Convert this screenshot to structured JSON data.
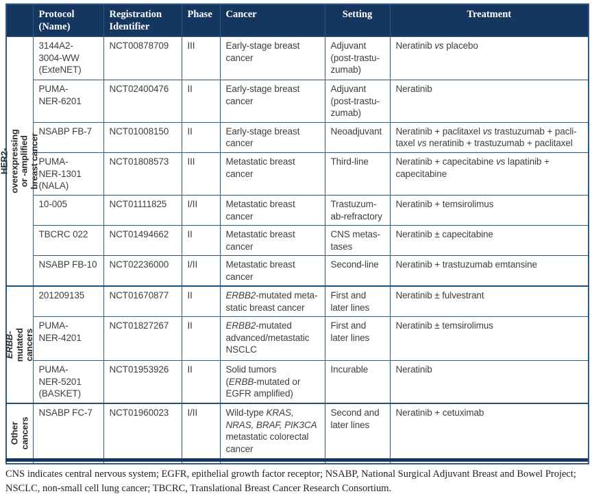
{
  "colors": {
    "header_bg": "#14365f",
    "grid_border": "#2d5a87",
    "group_divider": "#1f4e79",
    "body_text": "#3e3e3e",
    "footer_bar": "#14365f"
  },
  "header": {
    "columns": [
      "Protocol (Name)",
      "Registration Identifier",
      "Phase",
      "Cancer",
      "Setting",
      "Treatment"
    ]
  },
  "groups": [
    {
      "label": [
        {
          "t": "HER2-overexpressing or -amplified breast cancer"
        }
      ]
    },
    {
      "label": [
        {
          "t": "ERBB",
          "i": true
        },
        {
          "t": "-mutated"
        },
        {
          "br": true
        },
        {
          "t": "cancers"
        }
      ]
    },
    {
      "label": [
        {
          "t": "Other"
        },
        {
          "br": true
        },
        {
          "t": "cancers"
        }
      ]
    }
  ],
  "rows": [
    {
      "protocol": [
        {
          "t": "3144A2-"
        },
        {
          "br": true
        },
        {
          "t": "3004-WW"
        },
        {
          "br": true
        },
        {
          "t": "(ExteNET)"
        }
      ],
      "nct": "NCT00878709",
      "phase": "III",
      "cancer": [
        {
          "t": "Early-stage breast"
        },
        {
          "br": true
        },
        {
          "t": "cancer"
        }
      ],
      "setting": [
        {
          "t": "Adjuvant"
        },
        {
          "br": true
        },
        {
          "t": "(post-trastu-"
        },
        {
          "br": true
        },
        {
          "t": "zumab)"
        }
      ],
      "treatment": [
        {
          "t": "Neratinib "
        },
        {
          "t": "vs",
          "i": true
        },
        {
          "t": " placebo"
        }
      ]
    },
    {
      "protocol": [
        {
          "t": "PUMA-"
        },
        {
          "br": true
        },
        {
          "t": "NER-6201"
        }
      ],
      "nct": "NCT02400476",
      "phase": "II",
      "cancer": [
        {
          "t": "Early-stage breast"
        },
        {
          "br": true
        },
        {
          "t": "cancer"
        }
      ],
      "setting": [
        {
          "t": "Adjuvant"
        },
        {
          "br": true
        },
        {
          "t": "(post-trastu-"
        },
        {
          "br": true
        },
        {
          "t": "zumab)"
        }
      ],
      "treatment": [
        {
          "t": "Neratinib"
        }
      ]
    },
    {
      "protocol": [
        {
          "t": "NSABP FB-7"
        }
      ],
      "nct": "NCT01008150",
      "phase": "II",
      "cancer": [
        {
          "t": "Early-stage breast"
        },
        {
          "br": true
        },
        {
          "t": "cancer"
        }
      ],
      "setting": [
        {
          "t": "Neoadjuvant"
        }
      ],
      "treatment": [
        {
          "t": "Neratinib + paclitaxel "
        },
        {
          "t": "vs",
          "i": true
        },
        {
          "t": " trastuzumab + pacli-"
        },
        {
          "br": true
        },
        {
          "t": "taxel "
        },
        {
          "t": "vs",
          "i": true
        },
        {
          "t": " neratinib + trastuzumab + paclitaxel"
        }
      ]
    },
    {
      "protocol": [
        {
          "t": "PUMA-"
        },
        {
          "br": true
        },
        {
          "t": "NER-1301"
        },
        {
          "br": true
        },
        {
          "t": "(NALA)"
        }
      ],
      "nct": "NCT01808573",
      "phase": "III",
      "cancer": [
        {
          "t": "Metastatic breast"
        },
        {
          "br": true
        },
        {
          "t": "cancer"
        }
      ],
      "setting": [
        {
          "t": "Third-line"
        }
      ],
      "treatment": [
        {
          "t": "Neratinib + capecitabine "
        },
        {
          "t": "vs",
          "i": true
        },
        {
          "t": " lapatinib +"
        },
        {
          "br": true
        },
        {
          "t": "capecitabine"
        }
      ]
    },
    {
      "protocol": [
        {
          "t": "10-005"
        }
      ],
      "nct": "NCT01111825",
      "phase": "I/II",
      "cancer": [
        {
          "t": "Metastatic breast"
        },
        {
          "br": true
        },
        {
          "t": "cancer"
        }
      ],
      "setting": [
        {
          "t": "Trastuzum-"
        },
        {
          "br": true
        },
        {
          "t": "ab-refractory"
        }
      ],
      "treatment": [
        {
          "t": "Neratinib + temsirolimus"
        }
      ]
    },
    {
      "protocol": [
        {
          "t": "TBCRC 022"
        }
      ],
      "nct": "NCT01494662",
      "phase": "II",
      "cancer": [
        {
          "t": "Metastatic breast"
        },
        {
          "br": true
        },
        {
          "t": "cancer"
        }
      ],
      "setting": [
        {
          "t": "CNS metas-"
        },
        {
          "br": true
        },
        {
          "t": "tases"
        }
      ],
      "treatment": [
        {
          "t": "Neratinib ± capecitabine"
        }
      ]
    },
    {
      "protocol": [
        {
          "t": "NSABP FB-10"
        }
      ],
      "nct": "NCT02236000",
      "phase": "I/II",
      "cancer": [
        {
          "t": "Metastatic breast"
        },
        {
          "br": true
        },
        {
          "t": "cancer"
        }
      ],
      "setting": [
        {
          "t": "Second-line"
        }
      ],
      "treatment": [
        {
          "t": "Neratinib + trastuzumab emtansine"
        }
      ]
    },
    {
      "protocol": [
        {
          "t": "201209135"
        }
      ],
      "nct": "NCT01670877",
      "phase": "II",
      "cancer": [
        {
          "t": "ERBB2",
          "i": true
        },
        {
          "t": "-mutated meta-"
        },
        {
          "br": true
        },
        {
          "t": "static breast cancer"
        }
      ],
      "setting": [
        {
          "t": "First and"
        },
        {
          "br": true
        },
        {
          "t": "later lines"
        }
      ],
      "treatment": [
        {
          "t": "Neratinib ± fulvestrant"
        }
      ]
    },
    {
      "protocol": [
        {
          "t": "PUMA-"
        },
        {
          "br": true
        },
        {
          "t": "NER-4201"
        }
      ],
      "nct": "NCT01827267",
      "phase": "II",
      "cancer": [
        {
          "t": "ERBB2",
          "i": true
        },
        {
          "t": "-mutated"
        },
        {
          "br": true
        },
        {
          "t": "advanced/metastatic"
        },
        {
          "br": true
        },
        {
          "t": "NSCLC"
        }
      ],
      "setting": [
        {
          "t": "First and"
        },
        {
          "br": true
        },
        {
          "t": "later lines"
        }
      ],
      "treatment": [
        {
          "t": "Neratinib ± temsirolimus"
        }
      ]
    },
    {
      "protocol": [
        {
          "t": "PUMA-"
        },
        {
          "br": true
        },
        {
          "t": "NER-5201"
        },
        {
          "br": true
        },
        {
          "t": "(BASKET)"
        }
      ],
      "nct": "NCT01953926",
      "phase": "II",
      "cancer": [
        {
          "t": "Solid tumors"
        },
        {
          "br": true
        },
        {
          "t": "("
        },
        {
          "t": "ERBB",
          "i": true
        },
        {
          "t": "-mutated or"
        },
        {
          "br": true
        },
        {
          "t": "EGFR amplified)"
        }
      ],
      "setting": [
        {
          "t": "Incurable"
        }
      ],
      "treatment": [
        {
          "t": "Neratinib"
        }
      ]
    },
    {
      "protocol": [
        {
          "t": "NSABP FC-7"
        }
      ],
      "nct": "NCT01960023",
      "phase": "I/II",
      "cancer": [
        {
          "t": "Wild-type "
        },
        {
          "t": "KRAS,",
          "i": true
        },
        {
          "br": true
        },
        {
          "t": "NRAS, BRAF, PIK3CA",
          "i": true
        },
        {
          "br": true
        },
        {
          "t": "metastatic colorectal"
        },
        {
          "br": true
        },
        {
          "t": "cancer"
        }
      ],
      "setting": [
        {
          "t": "Second and"
        },
        {
          "br": true
        },
        {
          "t": "later lines"
        }
      ],
      "treatment": [
        {
          "t": "Neratinib + cetuximab"
        }
      ]
    }
  ],
  "footnote": "CNS indicates central nervous system; EGFR, epithelial growth factor receptor; NSABP, National Surgical Adjuvant Breast and Bowel Project; NSCLC, non-small cell lung cancer; TBCRC, Translational Breast Cancer Research Consortium."
}
